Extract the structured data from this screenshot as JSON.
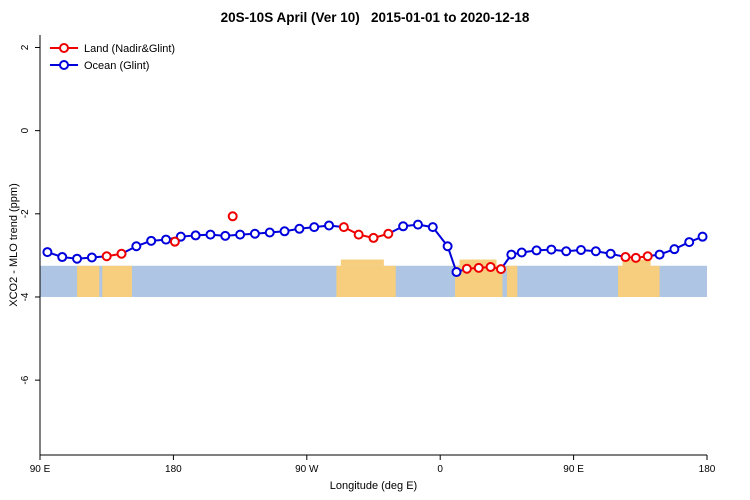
{
  "chart_data": {
    "type": "line",
    "title": "20S-10S April (Ver 10)   2015-01-01 to 2020-12-18",
    "xlabel": "Longitude (deg E)",
    "ylabel": "XCO2 - MLO trend (ppm)",
    "xlim": [
      90,
      540
    ],
    "ylim": [
      -7.8,
      2.3
    ],
    "grid": false,
    "legend_position": "top-left",
    "x_ticks": [
      {
        "x": 90,
        "label": "90 E"
      },
      {
        "x": 180,
        "label": "180"
      },
      {
        "x": 270,
        "label": "90 W"
      },
      {
        "x": 360,
        "label": "0"
      },
      {
        "x": 450,
        "label": "90 E"
      },
      {
        "x": 540,
        "label": "180"
      }
    ],
    "y_ticks": [
      {
        "y": 2,
        "label": "2"
      },
      {
        "y": 0,
        "label": "0"
      },
      {
        "y": -2,
        "label": "-2"
      },
      {
        "y": -4,
        "label": "-4"
      },
      {
        "y": -6,
        "label": "-6"
      }
    ],
    "legend": [
      {
        "name": "Land (Nadir&Glint)",
        "series": "land",
        "color": "#EE0000"
      },
      {
        "name": "Ocean (Glint)",
        "series": "ocean",
        "color": "#0000DD"
      }
    ],
    "colors": {
      "land": "#EE0000",
      "ocean": "#0000DD",
      "band_ocean": "#AEC6E3",
      "band_land": "#F7CE7D",
      "axis": "#000000"
    },
    "map_band": {
      "top": -3.25,
      "bottom": -4.0,
      "bump_top": -3.1,
      "land_patches": [
        [
          115,
          130
        ],
        [
          132,
          152
        ],
        [
          290,
          330
        ],
        [
          370,
          402
        ],
        [
          405,
          412
        ],
        [
          480,
          508
        ]
      ],
      "land_bumps": [
        [
          293,
          322
        ],
        [
          373,
          398
        ],
        [
          483,
          502
        ]
      ]
    },
    "points": [
      [
        95,
        -2.92,
        "O"
      ],
      [
        105,
        -3.04,
        "O"
      ],
      [
        115,
        -3.08,
        "O"
      ],
      [
        125,
        -3.05,
        "O"
      ],
      [
        135,
        -3.02,
        "L"
      ],
      [
        145,
        -2.96,
        "L"
      ],
      [
        155,
        -2.78,
        "O"
      ],
      [
        165,
        -2.65,
        "O"
      ],
      [
        175,
        -2.62,
        "O"
      ],
      [
        185,
        -2.55,
        "O"
      ],
      [
        195,
        -2.52,
        "O"
      ],
      [
        205,
        -2.5,
        "O"
      ],
      [
        215,
        -2.53,
        "O"
      ],
      [
        225,
        -2.5,
        "O"
      ],
      [
        235,
        -2.48,
        "O"
      ],
      [
        245,
        -2.45,
        "O"
      ],
      [
        255,
        -2.42,
        "O"
      ],
      [
        265,
        -2.36,
        "O"
      ],
      [
        275,
        -2.32,
        "O"
      ],
      [
        285,
        -2.28,
        "O"
      ],
      [
        295,
        -2.32,
        "L"
      ],
      [
        305,
        -2.5,
        "L"
      ],
      [
        315,
        -2.58,
        "L"
      ],
      [
        325,
        -2.48,
        "L"
      ],
      [
        335,
        -2.3,
        "O"
      ],
      [
        345,
        -2.26,
        "O"
      ],
      [
        355,
        -2.32,
        "O"
      ],
      [
        365,
        -2.78,
        "O"
      ],
      [
        371,
        -3.4,
        "O"
      ],
      [
        378,
        -3.32,
        "L"
      ],
      [
        386,
        -3.3,
        "L"
      ],
      [
        394,
        -3.28,
        "L"
      ],
      [
        401,
        -3.33,
        "L"
      ],
      [
        408,
        -2.98,
        "O"
      ],
      [
        415,
        -2.93,
        "O"
      ],
      [
        425,
        -2.88,
        "O"
      ],
      [
        435,
        -2.86,
        "O"
      ],
      [
        445,
        -2.9,
        "O"
      ],
      [
        455,
        -2.87,
        "O"
      ],
      [
        465,
        -2.9,
        "O"
      ],
      [
        475,
        -2.96,
        "O"
      ],
      [
        485,
        -3.04,
        "L"
      ],
      [
        492,
        -3.06,
        "L"
      ],
      [
        500,
        -3.02,
        "L"
      ],
      [
        508,
        -2.98,
        "O"
      ],
      [
        518,
        -2.85,
        "O"
      ],
      [
        528,
        -2.68,
        "O"
      ],
      [
        537,
        -2.55,
        "O"
      ]
    ],
    "isolated_land_points": [
      [
        181,
        -2.67
      ],
      [
        220,
        -2.06
      ]
    ]
  }
}
